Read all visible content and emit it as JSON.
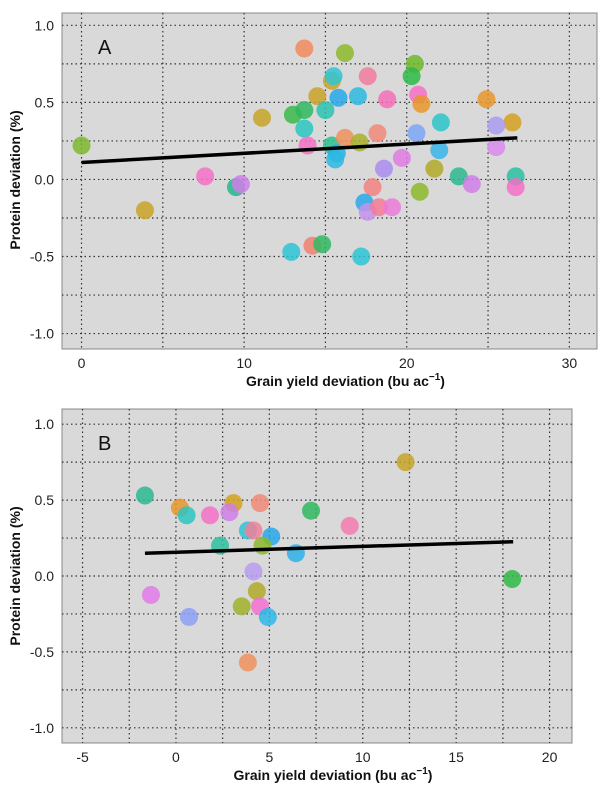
{
  "chart_data": [
    {
      "type": "scatter",
      "panel_label": "A",
      "xlabel": "Grain yield deviation (bu ac",
      "xlabel_sup": "−1",
      "xlabel_end": ")",
      "ylabel": "Protein deviation (%)",
      "xlim": [
        -1.2,
        31.7
      ],
      "ylim": [
        -1.1,
        1.08
      ],
      "xticks": [
        0,
        10,
        20,
        30
      ],
      "xtick_labels": [
        "0",
        "10",
        "20",
        "30"
      ],
      "xgrid": [
        0,
        5,
        10,
        15,
        20,
        25,
        30
      ],
      "yticks": [
        1.0,
        0.5,
        0.0,
        -0.5,
        -1.0
      ],
      "ytick_labels": [
        "1.0",
        "0.5",
        "0.0",
        "-0.5",
        "-1.0"
      ],
      "ygrid": [
        1.0,
        0.75,
        0.5,
        0.25,
        0.0,
        -0.25,
        -0.5,
        -0.75,
        -1.0
      ],
      "grid": true,
      "background": "#d9d9d9",
      "points": [
        [
          0.0,
          0.22,
          "#7cb82f"
        ],
        [
          3.9,
          -0.2,
          "#c9a227"
        ],
        [
          7.6,
          0.02,
          "#f46fc6"
        ],
        [
          9.5,
          -0.05,
          "#22b888"
        ],
        [
          9.8,
          -0.03,
          "#cf7ee8"
        ],
        [
          11.1,
          0.4,
          "#c5a528"
        ],
        [
          13.7,
          0.85,
          "#f08a5d"
        ],
        [
          16.2,
          0.82,
          "#8db82a"
        ],
        [
          15.4,
          0.64,
          "#c9a227"
        ],
        [
          15.5,
          0.67,
          "#2cc4d6"
        ],
        [
          14.5,
          0.54,
          "#c9a227"
        ],
        [
          15.8,
          0.53,
          "#27a7e8"
        ],
        [
          13.0,
          0.42,
          "#3ab84a"
        ],
        [
          13.7,
          0.45,
          "#2fb860"
        ],
        [
          15.0,
          0.45,
          "#2cc2b0"
        ],
        [
          13.7,
          0.33,
          "#2cc4c0"
        ],
        [
          13.9,
          0.22,
          "#f46fc6"
        ],
        [
          15.4,
          0.22,
          "#2bbf8f"
        ],
        [
          15.7,
          0.17,
          "#27b0e8"
        ],
        [
          15.6,
          0.13,
          "#2cb8e0"
        ],
        [
          12.9,
          -0.47,
          "#2cc4d6"
        ],
        [
          14.2,
          -0.43,
          "#f08070"
        ],
        [
          14.8,
          -0.42,
          "#2fb860"
        ],
        [
          17.6,
          0.67,
          "#f27a9f"
        ],
        [
          20.5,
          0.75,
          "#6fb82a"
        ],
        [
          20.3,
          0.67,
          "#2fb845"
        ],
        [
          17.0,
          0.54,
          "#2cb8e0"
        ],
        [
          18.8,
          0.52,
          "#f46fb8"
        ],
        [
          20.7,
          0.55,
          "#f46fc6"
        ],
        [
          20.9,
          0.49,
          "#e8962a"
        ],
        [
          24.9,
          0.52,
          "#e8962a"
        ],
        [
          22.1,
          0.37,
          "#2cc4c8"
        ],
        [
          26.5,
          0.37,
          "#d4a020"
        ],
        [
          25.5,
          0.35,
          "#a99cf0"
        ],
        [
          16.2,
          0.27,
          "#f0905d"
        ],
        [
          17.1,
          0.24,
          "#a8b02a"
        ],
        [
          18.2,
          0.3,
          "#f08878"
        ],
        [
          20.6,
          0.3,
          "#7ba6f5"
        ],
        [
          22.0,
          0.19,
          "#39b4e8"
        ],
        [
          25.5,
          0.21,
          "#d98aec"
        ],
        [
          19.7,
          0.14,
          "#e07ae0"
        ],
        [
          18.6,
          0.07,
          "#a98cf0"
        ],
        [
          21.7,
          0.07,
          "#b0a828"
        ],
        [
          23.2,
          0.02,
          "#2bb890"
        ],
        [
          24.0,
          -0.03,
          "#cf7ee8"
        ],
        [
          26.7,
          0.02,
          "#2bbfa0"
        ],
        [
          26.7,
          -0.05,
          "#f46fc6"
        ],
        [
          20.8,
          -0.08,
          "#8db82a"
        ],
        [
          17.9,
          -0.05,
          "#f48080"
        ],
        [
          17.4,
          -0.15,
          "#2ca8e8"
        ],
        [
          17.6,
          -0.21,
          "#c590ec"
        ],
        [
          18.3,
          -0.18,
          "#f47a98"
        ],
        [
          19.1,
          -0.18,
          "#ec7ad8"
        ],
        [
          17.2,
          -0.5,
          "#2cc4d6"
        ]
      ],
      "regression_line": {
        "x": [
          0.0,
          26.8
        ],
        "y": [
          0.11,
          0.27
        ],
        "color": "#000000"
      }
    },
    {
      "type": "scatter",
      "panel_label": "B",
      "xlabel": "Grain yield deviation (bu ac",
      "xlabel_sup": "−1",
      "xlabel_end": ")",
      "ylabel": "Protein deviation (%)",
      "xlim": [
        -6.1,
        21.2
      ],
      "ylim": [
        -1.1,
        1.1
      ],
      "xticks": [
        -5,
        0,
        5,
        10,
        15,
        20
      ],
      "xtick_labels": [
        "-5",
        "0",
        "5",
        "10",
        "15",
        "20"
      ],
      "xgrid": [
        -5,
        -2.5,
        0,
        2.5,
        5,
        7.5,
        10,
        12.5,
        15,
        17.5,
        20
      ],
      "yticks": [
        1.0,
        0.5,
        0.0,
        -0.5,
        -1.0
      ],
      "ytick_labels": [
        "1.0",
        "0.5",
        "0.0",
        "-0.5",
        "-1.0"
      ],
      "ygrid": [
        1.0,
        0.75,
        0.5,
        0.25,
        0.0,
        -0.25,
        -0.5,
        -0.75,
        -1.0
      ],
      "grid": true,
      "background": "#d9d9d9",
      "points": [
        [
          -1.66,
          0.53,
          "#2bb890"
        ],
        [
          0.21,
          0.45,
          "#e8962a"
        ],
        [
          0.57,
          0.4,
          "#2cc4c0"
        ],
        [
          1.82,
          0.4,
          "#f46fc6"
        ],
        [
          3.08,
          0.48,
          "#d4a020"
        ],
        [
          2.86,
          0.42,
          "#cf7ee8"
        ],
        [
          4.5,
          0.48,
          "#f08878"
        ],
        [
          7.23,
          0.43,
          "#2fb860"
        ],
        [
          9.3,
          0.33,
          "#f47ab0"
        ],
        [
          12.29,
          0.75,
          "#c5a528"
        ],
        [
          3.85,
          0.3,
          "#2cc4d6"
        ],
        [
          4.15,
          0.3,
          "#f0809a"
        ],
        [
          5.1,
          0.26,
          "#27a7e8"
        ],
        [
          2.36,
          0.2,
          "#2bbfa0"
        ],
        [
          4.63,
          0.2,
          "#8db82a"
        ],
        [
          6.42,
          0.15,
          "#2cb0e8"
        ],
        [
          18.0,
          -0.02,
          "#2fb845"
        ],
        [
          4.15,
          0.03,
          "#b99cf0"
        ],
        [
          -1.34,
          -0.125,
          "#e07ae8"
        ],
        [
          4.33,
          -0.1,
          "#b0a828"
        ],
        [
          3.52,
          -0.2,
          "#a0b02a"
        ],
        [
          4.5,
          -0.2,
          "#f46fd0"
        ],
        [
          0.7,
          -0.27,
          "#8ca0f5"
        ],
        [
          4.92,
          -0.27,
          "#2cb8e8"
        ],
        [
          3.85,
          -0.57,
          "#f0905d"
        ]
      ],
      "regression_line": {
        "x": [
          -1.66,
          18.05
        ],
        "y": [
          0.15,
          0.226
        ],
        "color": "#000000"
      }
    }
  ]
}
